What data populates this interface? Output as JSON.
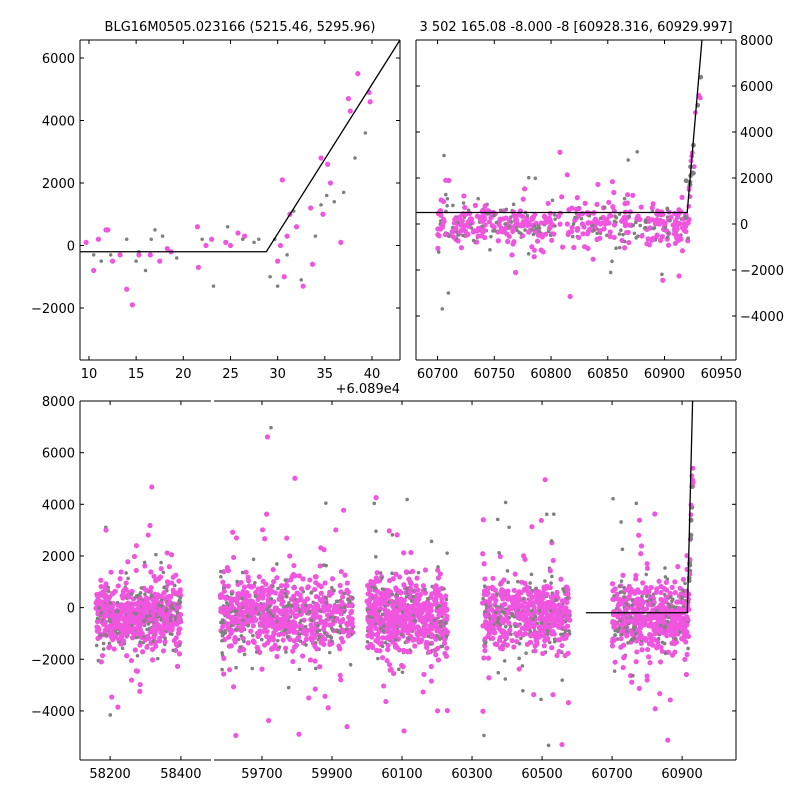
{
  "chart_data": [
    {
      "type": "scatter",
      "title": "BLG16M0505.023166 (5215.46, 5295.96)",
      "x_offset_label": "+6.089e4",
      "xlim": [
        9.05,
        42.97
      ],
      "ylim": [
        -3664,
        6576
      ],
      "xticks": [
        10,
        15,
        20,
        25,
        30,
        35,
        40
      ],
      "yticks": [
        -2000,
        0,
        2000,
        4000,
        6000
      ],
      "model_line": [
        [
          9.05,
          -200
        ],
        [
          28.8,
          -200
        ],
        [
          42.97,
          6576
        ]
      ],
      "series": [
        {
          "name": "magenta",
          "color": "#f055e0",
          "points": [
            [
              9.7,
              100
            ],
            [
              10.5,
              -800
            ],
            [
              11,
              200
            ],
            [
              11.8,
              500
            ],
            [
              12,
              500
            ],
            [
              12.5,
              -500
            ],
            [
              13.3,
              -300
            ],
            [
              14,
              -1400
            ],
            [
              14.6,
              -1900
            ],
            [
              15.3,
              -300
            ],
            [
              16.5,
              -300
            ],
            [
              17.5,
              -500
            ],
            [
              18.3,
              -100
            ],
            [
              18.7,
              -200
            ],
            [
              21.5,
              600
            ],
            [
              21.6,
              -700
            ],
            [
              22.4,
              0
            ],
            [
              23,
              200
            ],
            [
              24.5,
              100
            ],
            [
              25,
              0
            ],
            [
              25.8,
              400
            ],
            [
              26.5,
              300
            ],
            [
              30,
              -500
            ],
            [
              30.3,
              0
            ],
            [
              30.5,
              2100
            ],
            [
              30.7,
              -1000
            ],
            [
              31,
              300
            ],
            [
              31.3,
              1000
            ],
            [
              32,
              600
            ],
            [
              32.7,
              -1300
            ],
            [
              33.5,
              1200
            ],
            [
              33.7,
              -600
            ],
            [
              34.6,
              2800
            ],
            [
              34.8,
              1000
            ],
            [
              35.3,
              2600
            ],
            [
              35.6,
              2000
            ],
            [
              36.7,
              100
            ],
            [
              37.5,
              4700
            ],
            [
              37.7,
              4300
            ],
            [
              38.5,
              5500
            ],
            [
              39.7,
              4900
            ],
            [
              39.8,
              4600
            ]
          ]
        },
        {
          "name": "gray",
          "color": "#808080",
          "points": [
            [
              10.5,
              -300
            ],
            [
              11.3,
              -500
            ],
            [
              12.3,
              -300
            ],
            [
              14,
              200
            ],
            [
              15,
              -500
            ],
            [
              15.3,
              -200
            ],
            [
              16,
              -800
            ],
            [
              16.6,
              200
            ],
            [
              17,
              500
            ],
            [
              17.8,
              300
            ],
            [
              19.3,
              -400
            ],
            [
              22,
              200
            ],
            [
              23.2,
              -1300
            ],
            [
              24.7,
              600
            ],
            [
              26.3,
              200
            ],
            [
              27.5,
              100
            ],
            [
              28,
              200
            ],
            [
              29.2,
              -1000
            ],
            [
              29.7,
              200
            ],
            [
              30,
              -1300
            ],
            [
              31,
              -300
            ],
            [
              31.7,
              1100
            ],
            [
              32.5,
              -1100
            ],
            [
              34,
              300
            ],
            [
              34.6,
              1300
            ],
            [
              35.2,
              1600
            ],
            [
              36,
              1400
            ],
            [
              37,
              1700
            ],
            [
              38.2,
              2800
            ],
            [
              39.3,
              3600
            ]
          ]
        }
      ]
    },
    {
      "type": "scatter",
      "title": "3 502 165.08 -8.000 -8 [60928.316, 60929.997]",
      "xlim": [
        60681,
        60963
      ],
      "ylim": [
        -5913,
        8000
      ],
      "xticks": [
        60700,
        60750,
        60800,
        60850,
        60900,
        60950
      ],
      "yticks": [
        -4000,
        -2000,
        0,
        2000,
        4000,
        6000,
        8000
      ],
      "y_axis_side": "right",
      "model_line": [
        [
          60681,
          500
        ],
        [
          60920,
          500
        ],
        [
          60933,
          8000
        ]
      ],
      "clusters": [
        {
          "x_range": [
            60700,
            60922
          ],
          "mean": 0,
          "sd": 450,
          "count": 520
        }
      ]
    },
    {
      "type": "scatter",
      "broken_x_axis": true,
      "xlim_segments": [
        [
          58115,
          58485
        ],
        [
          59563,
          61054
        ]
      ],
      "ylim": [
        -5900,
        8000
      ],
      "xticks": [
        58200,
        58400,
        59700,
        59900,
        60100,
        60300,
        60500,
        60700,
        60900
      ],
      "yticks": [
        -4000,
        -2000,
        0,
        2000,
        4000,
        6000,
        8000
      ],
      "model_line": [
        [
          60625,
          -200
        ],
        [
          60915,
          -200
        ],
        [
          60930,
          8000
        ]
      ],
      "clusters": [
        {
          "x_range": [
            58160,
            58400
          ],
          "mean": -300,
          "sd": 600,
          "count": 700
        },
        {
          "x_range": [
            59580,
            59960
          ],
          "mean": -300,
          "sd": 700,
          "count": 800
        },
        {
          "x_range": [
            60000,
            60230
          ],
          "mean": -300,
          "sd": 700,
          "count": 700
        },
        {
          "x_range": [
            60330,
            60580
          ],
          "mean": -300,
          "sd": 700,
          "count": 600
        },
        {
          "x_range": [
            60700,
            60920
          ],
          "mean": -300,
          "sd": 600,
          "count": 600
        }
      ]
    }
  ]
}
